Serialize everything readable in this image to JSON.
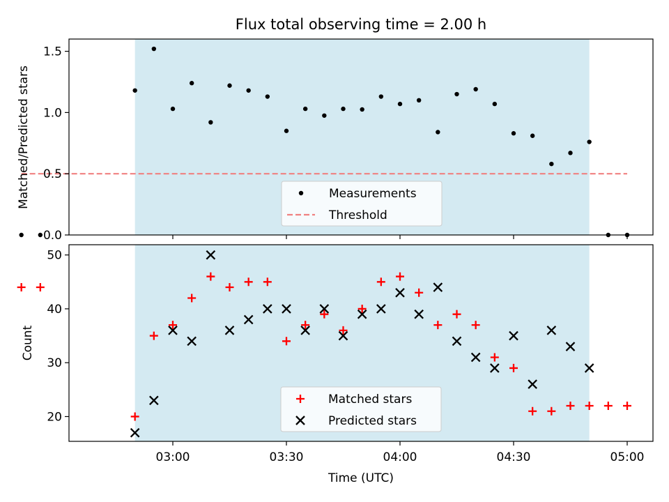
{
  "chart_data": [
    {
      "type": "scatter",
      "title": "Flux total observing time = 2.00 h",
      "ylabel": "Matched/Predicted stars",
      "xlabel": "",
      "ylim": [
        0,
        1.6
      ],
      "yticks": [
        "0.0",
        "0.5",
        "1.0",
        "1.5"
      ],
      "shaded_interval": [
        "02:50",
        "04:50"
      ],
      "shade_color": "#add8e6",
      "legend": {
        "placement": "bottom-center"
      },
      "series": [
        {
          "name": "Measurements",
          "marker": "dot",
          "color": "#000000",
          "points": [
            [
              "02:20",
              0.0
            ],
            [
              "02:25",
              0.0
            ],
            [
              "02:50",
              1.18
            ],
            [
              "02:55",
              1.52
            ],
            [
              "03:00",
              1.03
            ],
            [
              "03:05",
              1.24
            ],
            [
              "03:10",
              0.92
            ],
            [
              "03:15",
              1.22
            ],
            [
              "03:20",
              1.18
            ],
            [
              "03:25",
              1.13
            ],
            [
              "03:30",
              0.85
            ],
            [
              "03:35",
              1.03
            ],
            [
              "03:40",
              0.975
            ],
            [
              "03:45",
              1.03
            ],
            [
              "03:50",
              1.025
            ],
            [
              "03:55",
              1.13
            ],
            [
              "04:00",
              1.07
            ],
            [
              "04:05",
              1.1
            ],
            [
              "04:10",
              0.84
            ],
            [
              "04:15",
              1.15
            ],
            [
              "04:20",
              1.19
            ],
            [
              "04:25",
              1.07
            ],
            [
              "04:30",
              0.83
            ],
            [
              "04:35",
              0.81
            ],
            [
              "04:40",
              0.58
            ],
            [
              "04:45",
              0.67
            ],
            [
              "04:50",
              0.76
            ],
            [
              "04:55",
              0.0
            ],
            [
              "05:00",
              0.0
            ]
          ]
        },
        {
          "name": "Threshold",
          "marker": "dashed-line",
          "color": "#f08080",
          "points": [
            [
              "02:20",
              0.5
            ],
            [
              "05:00",
              0.5
            ]
          ]
        }
      ]
    },
    {
      "type": "scatter",
      "title": "",
      "ylabel": "Count",
      "xlabel": "Time (UTC)",
      "ylim": [
        15.4,
        51.9
      ],
      "yticks": [
        "20",
        "30",
        "40",
        "50"
      ],
      "xticks": [
        "03:00",
        "03:30",
        "04:00",
        "04:30",
        "05:00"
      ],
      "shaded_interval": [
        "02:50",
        "04:50"
      ],
      "shade_color": "#add8e6",
      "legend": {
        "placement": "bottom-center"
      },
      "series": [
        {
          "name": "Matched stars",
          "marker": "plus",
          "color": "#ff0000",
          "points": [
            [
              "02:20",
              44
            ],
            [
              "02:25",
              44
            ],
            [
              "02:50",
              20
            ],
            [
              "02:55",
              35
            ],
            [
              "03:00",
              37
            ],
            [
              "03:05",
              42
            ],
            [
              "03:10",
              46
            ],
            [
              "03:15",
              44
            ],
            [
              "03:20",
              45
            ],
            [
              "03:25",
              45
            ],
            [
              "03:30",
              34
            ],
            [
              "03:35",
              37
            ],
            [
              "03:40",
              39
            ],
            [
              "03:45",
              36
            ],
            [
              "03:50",
              40
            ],
            [
              "03:55",
              45
            ],
            [
              "04:00",
              46
            ],
            [
              "04:05",
              43
            ],
            [
              "04:10",
              37
            ],
            [
              "04:15",
              39
            ],
            [
              "04:20",
              37
            ],
            [
              "04:25",
              31
            ],
            [
              "04:30",
              29
            ],
            [
              "04:35",
              21
            ],
            [
              "04:40",
              21
            ],
            [
              "04:45",
              22
            ],
            [
              "04:50",
              22
            ],
            [
              "04:55",
              22
            ],
            [
              "05:00",
              22
            ]
          ]
        },
        {
          "name": "Predicted stars",
          "marker": "cross",
          "color": "#000000",
          "points": [
            [
              "02:50",
              17
            ],
            [
              "02:55",
              23
            ],
            [
              "03:00",
              36
            ],
            [
              "03:05",
              34
            ],
            [
              "03:10",
              50
            ],
            [
              "03:15",
              36
            ],
            [
              "03:20",
              38
            ],
            [
              "03:25",
              40
            ],
            [
              "03:30",
              40
            ],
            [
              "03:35",
              36
            ],
            [
              "03:40",
              40
            ],
            [
              "03:45",
              35
            ],
            [
              "03:50",
              39
            ],
            [
              "03:55",
              40
            ],
            [
              "04:00",
              43
            ],
            [
              "04:05",
              39
            ],
            [
              "04:10",
              44
            ],
            [
              "04:15",
              34
            ],
            [
              "04:20",
              31
            ],
            [
              "04:25",
              29
            ],
            [
              "04:30",
              35
            ],
            [
              "04:35",
              26
            ],
            [
              "04:40",
              36
            ],
            [
              "04:45",
              33
            ],
            [
              "04:50",
              29
            ]
          ]
        }
      ]
    }
  ]
}
